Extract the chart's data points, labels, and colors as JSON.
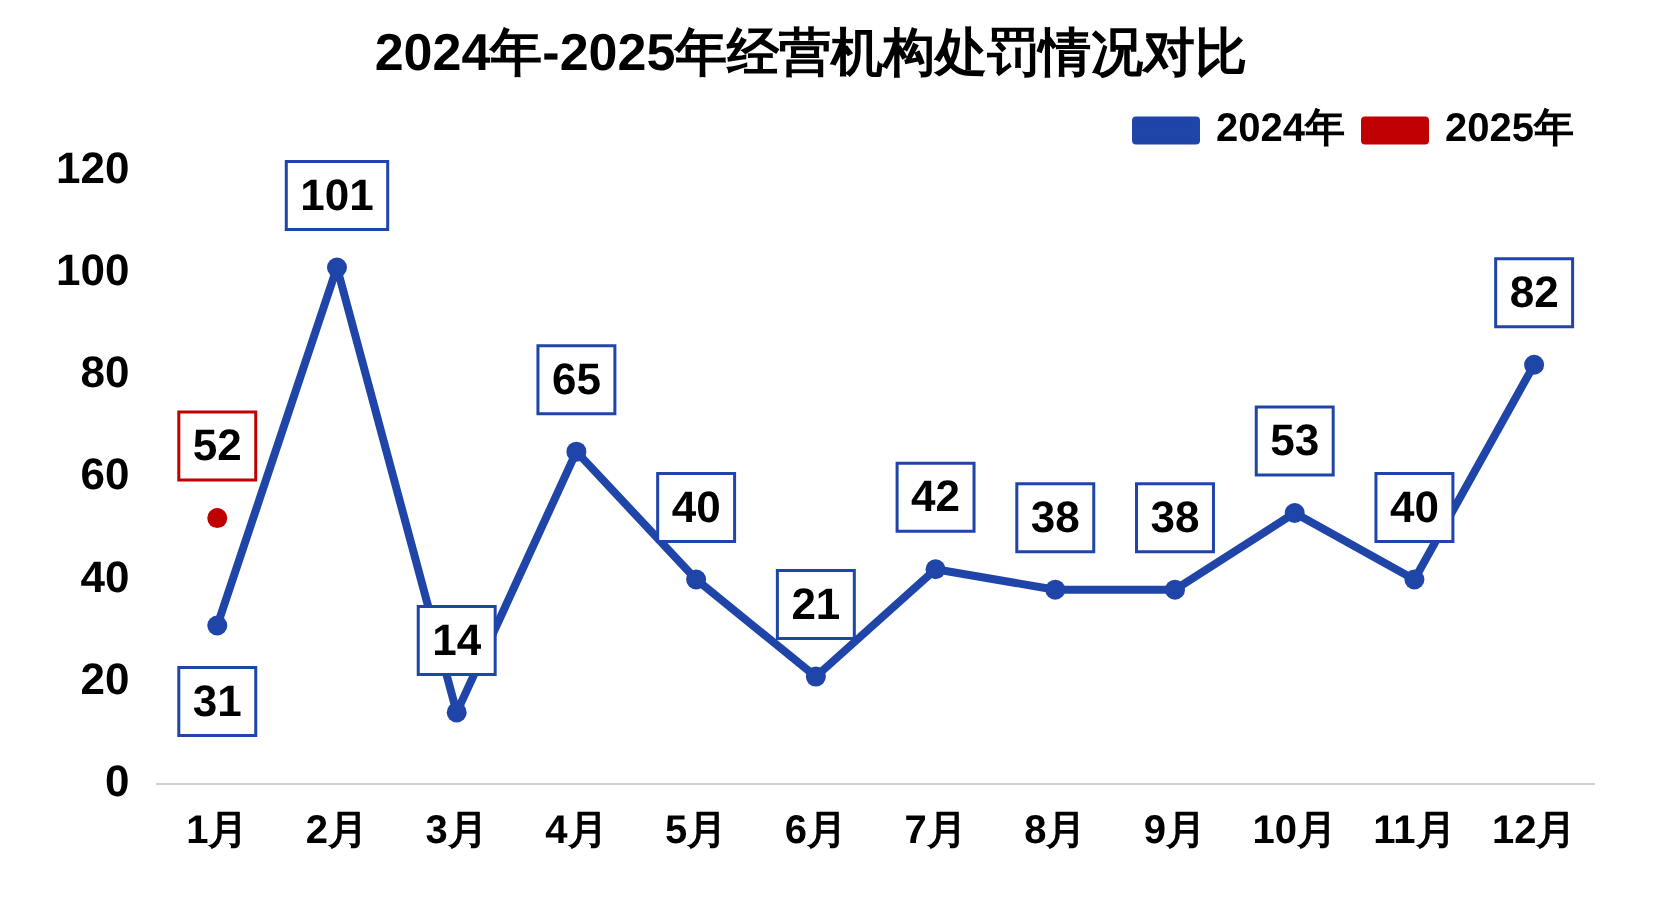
{
  "chart_data": {
    "type": "line",
    "title": "2024年-2025年经营机构处罚情况对比",
    "categories": [
      "1月",
      "2月",
      "3月",
      "4月",
      "5月",
      "6月",
      "7月",
      "8月",
      "9月",
      "10月",
      "11月",
      "12月"
    ],
    "series": [
      {
        "name": "2024年",
        "color": "#1f45a8",
        "values": [
          31,
          101,
          14,
          65,
          40,
          21,
          42,
          38,
          38,
          53,
          40,
          82
        ]
      },
      {
        "name": "2025年",
        "color": "#c00000",
        "values": [
          52,
          null,
          null,
          null,
          null,
          null,
          null,
          null,
          null,
          null,
          null,
          null
        ]
      }
    ],
    "ylim": [
      0,
      120
    ],
    "yticks": [
      0,
      20,
      40,
      60,
      80,
      100,
      120
    ],
    "grid": false,
    "legend": "top right",
    "marker": "circle",
    "line_style": "solid",
    "data_labels": true
  }
}
